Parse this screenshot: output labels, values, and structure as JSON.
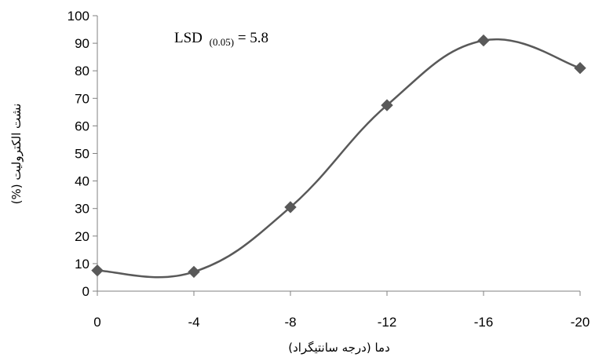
{
  "chart_data": {
    "type": "line",
    "x": [
      "0",
      "-4",
      "-8",
      "-12",
      "-16",
      "-20"
    ],
    "series": [
      {
        "values": [
          7.5,
          7,
          30.5,
          67.5,
          91,
          81
        ],
        "color": "#595959",
        "marker": "diamond",
        "smooth": true
      }
    ],
    "xlabel": "دما (درجه سانتیگراد)",
    "ylabel": "نشت الکترولیت (%)",
    "ylim": [
      0,
      100
    ],
    "yticks": [
      0,
      10,
      20,
      30,
      40,
      50,
      60,
      70,
      80,
      90,
      100
    ],
    "grid": false,
    "annotation": {
      "prefix": "LSD",
      "subscript": "(0.05)",
      "suffix": " = 5.8"
    }
  }
}
